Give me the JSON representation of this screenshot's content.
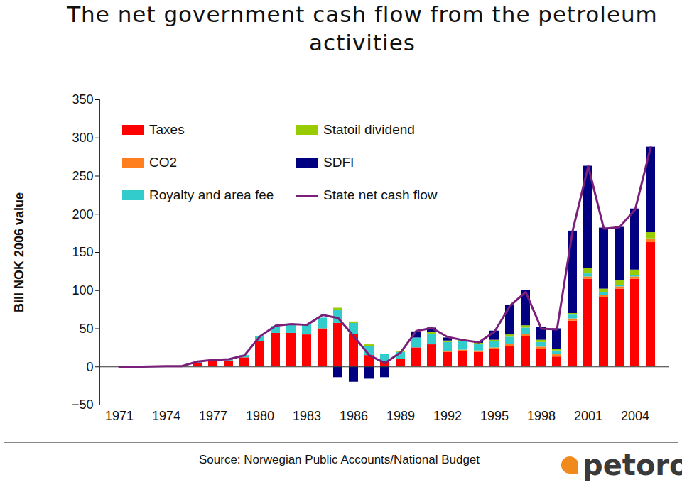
{
  "chart_data": {
    "type": "bar",
    "title": "The net government cash flow from the petroleum activities",
    "y_label": "Bill NOK 2006 value",
    "source": "Source: Norwegian Public Accounts/National Budget",
    "logo": "petoro",
    "stacked": true,
    "legend": "top-left",
    "categories": [
      1971,
      null,
      null,
      1974,
      null,
      null,
      1977,
      null,
      null,
      1980,
      null,
      null,
      1983,
      null,
      null,
      1986,
      null,
      null,
      1989,
      null,
      null,
      1992,
      null,
      null,
      1995,
      null,
      null,
      1998,
      null,
      null,
      2001,
      null,
      null,
      2004,
      null
    ],
    "ylim": [
      -50,
      350
    ],
    "yticks": [
      -50,
      0,
      50,
      100,
      150,
      200,
      250,
      300,
      350
    ],
    "series": [
      {
        "name": "Taxes",
        "color": "#ff0000",
        "type": "bar",
        "values": [
          0,
          0,
          0.5,
          1,
          1,
          5,
          7,
          8,
          12,
          33,
          44,
          44,
          42,
          50,
          57,
          43,
          15,
          7,
          10,
          25,
          29,
          19,
          20,
          19,
          23,
          27,
          40,
          23,
          13,
          60,
          115,
          91,
          102,
          115,
          163
        ]
      },
      {
        "name": "CO2",
        "color": "#ff7f1f",
        "type": "bar",
        "values": [
          0,
          0,
          0,
          0,
          0,
          0,
          0,
          0,
          0,
          0,
          0,
          0,
          0,
          0,
          0,
          0,
          0,
          0,
          0,
          0,
          0,
          1,
          2,
          2,
          2,
          3,
          3,
          3,
          3,
          3,
          3,
          3,
          3,
          3,
          4
        ]
      },
      {
        "name": "Royalty and area fee",
        "color": "#33cccc",
        "type": "bar",
        "values": [
          0,
          0,
          0,
          0,
          0,
          1,
          1.5,
          2,
          3,
          7,
          9,
          11,
          13,
          14,
          17,
          14,
          12,
          10,
          9,
          13,
          14,
          12,
          11,
          8,
          8,
          9,
          8,
          6,
          5,
          5,
          4,
          3,
          2,
          2,
          1
        ]
      },
      {
        "name": "Statoil dividend",
        "color": "#99cc00",
        "type": "bar",
        "values": [
          0,
          0,
          0,
          0,
          0,
          0,
          0,
          0,
          0,
          0,
          0,
          0,
          0,
          0,
          3,
          2,
          2,
          0,
          1,
          0,
          2,
          2,
          2,
          2,
          2,
          3,
          3,
          3,
          2,
          2,
          7,
          5,
          6,
          7,
          8
        ]
      },
      {
        "name": "SDFI",
        "color": "#000080",
        "type": "bar",
        "values": [
          0,
          0,
          0,
          0,
          0,
          0,
          0,
          0,
          0,
          0,
          0,
          0,
          0,
          0,
          -14,
          -20,
          -16,
          -14,
          0,
          8,
          6,
          4,
          0,
          2,
          12,
          39,
          46,
          17,
          27,
          108,
          134,
          80,
          70,
          80,
          112
        ]
      },
      {
        "name": "State net cash flow",
        "color": "#7a1f7a",
        "type": "line",
        "values": [
          0,
          0,
          0.5,
          1,
          1,
          7,
          9,
          10,
          15,
          40,
          54,
          56,
          55,
          68,
          64,
          40,
          15,
          5,
          19,
          47,
          51,
          39,
          35,
          32,
          46,
          80,
          98,
          50,
          49,
          178,
          263,
          181,
          183,
          206,
          288
        ]
      }
    ]
  }
}
